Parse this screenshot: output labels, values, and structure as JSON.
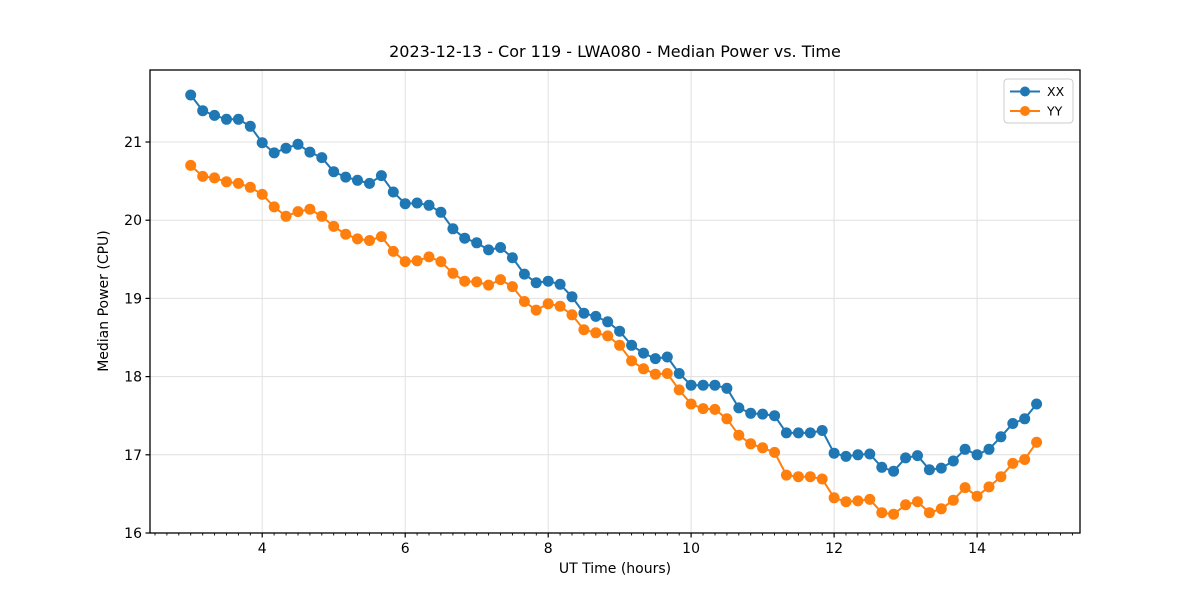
{
  "page": {
    "background": "#ffffff"
  },
  "chart_data": {
    "type": "line",
    "title": "2023-12-13 - Cor 119 - LWA080 - Median Power vs. Time",
    "xlabel": "UT Time (hours)",
    "ylabel": "Median Power (CPU)",
    "xlim": [
      2.43,
      15.44
    ],
    "ylim": [
      16.0,
      21.92
    ],
    "x_major_ticks": [
      4,
      6,
      8,
      10,
      12,
      14
    ],
    "x_minor_tick_step": 0.166667,
    "y_major_ticks": [
      16,
      17,
      18,
      19,
      20,
      21
    ],
    "grid": true,
    "grid_color": "#e0e0e0",
    "legend": {
      "position": "upper right",
      "entries": [
        "XX",
        "YY"
      ]
    },
    "x": [
      3.0,
      3.167,
      3.333,
      3.5,
      3.667,
      3.833,
      4.0,
      4.167,
      4.333,
      4.5,
      4.667,
      4.833,
      5.0,
      5.167,
      5.333,
      5.5,
      5.667,
      5.833,
      6.0,
      6.167,
      6.333,
      6.5,
      6.667,
      6.833,
      7.0,
      7.167,
      7.333,
      7.5,
      7.667,
      7.833,
      8.0,
      8.167,
      8.333,
      8.5,
      8.667,
      8.833,
      9.0,
      9.167,
      9.333,
      9.5,
      9.667,
      9.833,
      10.0,
      10.167,
      10.333,
      10.5,
      10.667,
      10.833,
      11.0,
      11.167,
      11.333,
      11.5,
      11.667,
      11.833,
      12.0,
      12.167,
      12.333,
      12.5,
      12.667,
      12.833,
      13.0,
      13.167,
      13.333,
      13.5,
      13.667,
      13.833,
      14.0,
      14.167,
      14.333,
      14.5,
      14.667,
      14.833
    ],
    "series": [
      {
        "name": "XX",
        "color": "#1f77b4",
        "values": [
          21.6,
          21.4,
          21.34,
          21.29,
          21.29,
          21.2,
          20.99,
          20.86,
          20.92,
          20.97,
          20.87,
          20.8,
          20.62,
          20.55,
          20.51,
          20.47,
          20.57,
          20.36,
          20.21,
          20.22,
          20.19,
          20.1,
          19.89,
          19.77,
          19.71,
          19.62,
          19.65,
          19.52,
          19.31,
          19.2,
          19.22,
          19.18,
          19.02,
          18.81,
          18.77,
          18.7,
          18.58,
          18.4,
          18.3,
          18.23,
          18.25,
          18.04,
          17.89,
          17.89,
          17.89,
          17.85,
          17.6,
          17.53,
          17.52,
          17.5,
          17.28,
          17.28,
          17.28,
          17.31,
          17.02,
          16.98,
          17.0,
          17.01,
          16.84,
          16.79,
          16.96,
          16.99,
          16.81,
          16.83,
          16.92,
          17.07,
          17.0,
          17.07,
          17.23,
          17.4,
          17.46,
          17.65
        ]
      },
      {
        "name": "YY",
        "color": "#ff7f0e",
        "values": [
          20.7,
          20.56,
          20.54,
          20.49,
          20.47,
          20.42,
          20.33,
          20.17,
          20.05,
          20.11,
          20.14,
          20.05,
          19.92,
          19.82,
          19.76,
          19.74,
          19.79,
          19.6,
          19.47,
          19.48,
          19.53,
          19.47,
          19.32,
          19.22,
          19.21,
          19.17,
          19.24,
          19.15,
          18.96,
          18.85,
          18.93,
          18.9,
          18.79,
          18.6,
          18.56,
          18.52,
          18.4,
          18.2,
          18.1,
          18.03,
          18.04,
          17.83,
          17.65,
          17.59,
          17.58,
          17.46,
          17.25,
          17.14,
          17.09,
          17.03,
          16.74,
          16.72,
          16.72,
          16.69,
          16.45,
          16.4,
          16.41,
          16.43,
          16.26,
          16.24,
          16.36,
          16.4,
          16.26,
          16.31,
          16.42,
          16.58,
          16.47,
          16.59,
          16.72,
          16.89,
          16.94,
          17.16
        ]
      }
    ]
  }
}
